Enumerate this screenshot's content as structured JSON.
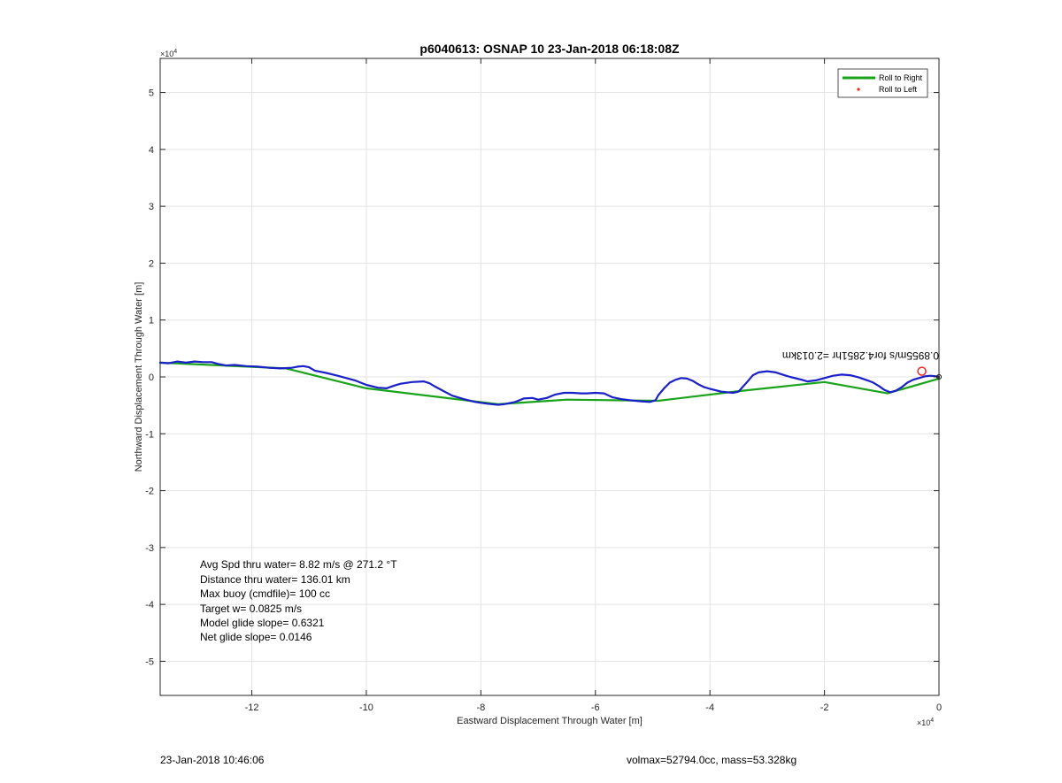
{
  "chart_data": {
    "type": "line",
    "title": "p6040613: OSNAP 10 23-Jan-2018 06:18:08Z",
    "xlabel": "Eastward Displacement Through Water [m]",
    "ylabel": "Northward Displacement Through Water [m]",
    "xlim": [
      -136000,
      0
    ],
    "ylim": [
      -56000,
      56000
    ],
    "x_exponent_label": "×10",
    "x_exponent_power": "4",
    "y_exponent_label": "×10",
    "y_exponent_power": "4",
    "xticks": [
      -120000,
      -100000,
      -80000,
      -60000,
      -40000,
      -20000,
      0
    ],
    "xtick_labels": [
      "-12",
      "-10",
      "-8",
      "-6",
      "-4",
      "-2",
      "0"
    ],
    "yticks": [
      50000,
      40000,
      30000,
      20000,
      10000,
      0,
      -10000,
      -20000,
      -30000,
      -40000,
      -50000
    ],
    "ytick_labels": [
      "5",
      "4",
      "3",
      "2",
      "1",
      "0",
      "-1",
      "-2",
      "-3",
      "-4",
      "-5"
    ],
    "grid": true,
    "legend": {
      "placement": "top-right",
      "entries": [
        {
          "label": "Roll to Right",
          "color": "#1aa31a",
          "style": "line"
        },
        {
          "label": "Roll to Left",
          "color": "#ff2020",
          "style": "dot"
        }
      ]
    },
    "series": [
      {
        "name": "Roll to Right",
        "color": "#1aa31a",
        "x": [
          -136000,
          -114000,
          -100000,
          -77000,
          -65000,
          -49000,
          -35000,
          -20000,
          -9000,
          0
        ],
        "y": [
          2500,
          1500,
          -2000,
          -4800,
          -4000,
          -4200,
          -2500,
          -900,
          -2900,
          -300
        ]
      },
      {
        "name": "",
        "color": "#1a20c8",
        "x": [
          -136000,
          -134500,
          -133000,
          -131500,
          -130000,
          -128500,
          -127000,
          -126000,
          -124500,
          -123000,
          -121000,
          -119000,
          -117000,
          -115000,
          -113000,
          -112000,
          -111000,
          -110000,
          -109000,
          -107000,
          -105000,
          -102000,
          -100000,
          -98000,
          -96500,
          -95000,
          -94000,
          -92000,
          -90000,
          -89000,
          -88000,
          -86500,
          -85000,
          -83000,
          -81000,
          -79000,
          -77000,
          -76000,
          -74000,
          -72500,
          -71000,
          -70000,
          -68500,
          -67000,
          -65500,
          -64000,
          -62500,
          -61500,
          -60000,
          -58500,
          -57000,
          -55500,
          -54000,
          -52000,
          -50500,
          -49500,
          -49000,
          -48000,
          -47000,
          -46000,
          -45000,
          -44000,
          -43000,
          -42000,
          -41000,
          -40000,
          -38000,
          -36000,
          -35000,
          -34500,
          -33500,
          -32500,
          -31500,
          -30000,
          -28500,
          -27000,
          -26000,
          -24000,
          -23000,
          -21500,
          -20000,
          -18500,
          -17000,
          -15500,
          -14000,
          -12500,
          -11500,
          -10500,
          -9500,
          -8500,
          -7500,
          -6500,
          -5500,
          -4500,
          -3500,
          -2500,
          -1500,
          -500,
          0
        ],
        "y": [
          2500,
          2400,
          2700,
          2500,
          2700,
          2600,
          2600,
          2300,
          2000,
          2100,
          1900,
          1800,
          1600,
          1500,
          1600,
          1800,
          1900,
          1700,
          1100,
          700,
          200,
          -600,
          -1400,
          -1900,
          -2000,
          -1500,
          -1200,
          -900,
          -800,
          -1100,
          -1700,
          -2500,
          -3300,
          -3900,
          -4400,
          -4700,
          -4900,
          -4800,
          -4400,
          -3800,
          -3700,
          -4000,
          -3700,
          -3100,
          -2800,
          -2800,
          -2900,
          -2900,
          -2800,
          -2900,
          -3600,
          -3900,
          -4100,
          -4300,
          -4400,
          -4100,
          -3200,
          -2000,
          -1000,
          -500,
          -200,
          -300,
          -700,
          -1300,
          -1800,
          -2100,
          -2600,
          -2800,
          -2600,
          -2000,
          -900,
          300,
          800,
          1000,
          800,
          300,
          0,
          -500,
          -800,
          -600,
          -200,
          200,
          400,
          300,
          -100,
          -600,
          -1000,
          -1600,
          -2300,
          -2700,
          -2400,
          -1800,
          -1000,
          -500,
          -200,
          100,
          200,
          100,
          0
        ]
      }
    ],
    "annotations": {
      "rotated_label": "0.8955m/s for4.2851hr =2.013km",
      "stats": [
        "Avg Spd thru water=  8.82 m/s @ 271.2 °T",
        "Distance thru water= 136.01 km",
        "Max buoy (cmdfile)= 100 cc",
        "Target w= 0.0825 m/s",
        "Model glide slope= 0.6321",
        "Net glide slope= 0.0146"
      ]
    }
  },
  "footer": {
    "timestamp": "23-Jan-2018 10:46:06",
    "volmax_mass": "volmax=52794.0cc, mass=53.328kg"
  }
}
